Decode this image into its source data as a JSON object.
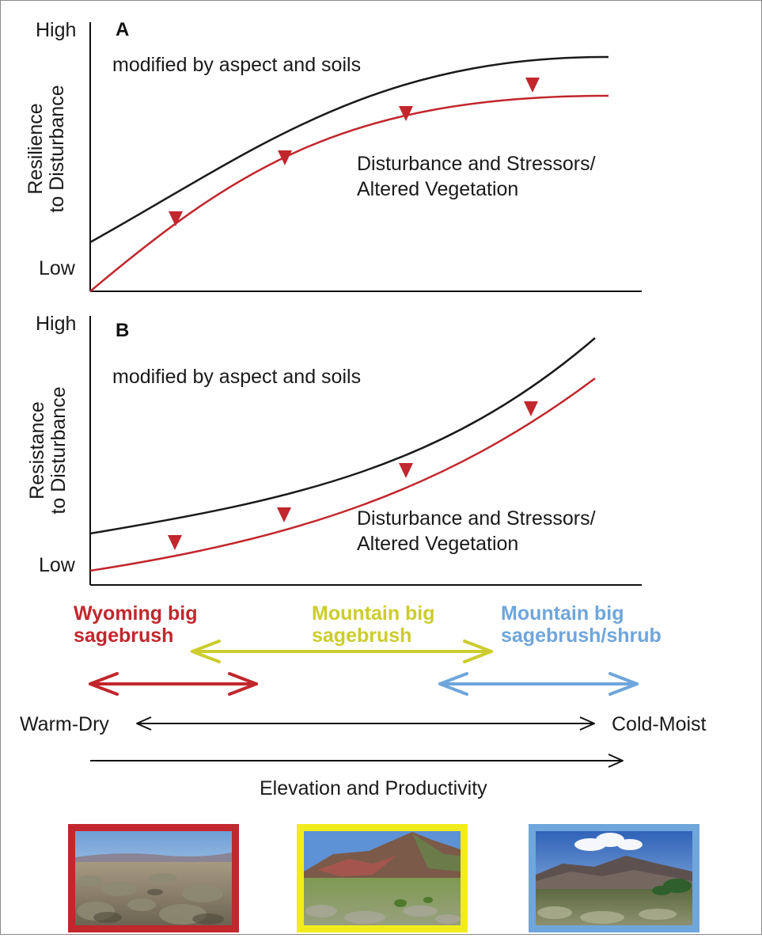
{
  "panel_a": {
    "letter": "A",
    "y_high": "High",
    "y_low": "Low",
    "y_label_line1": "Resilience",
    "y_label_line2": "to Disturbance",
    "modifier_text": "modified by aspect and soils",
    "stress_line1": "Disturbance and Stressors/",
    "stress_line2": "Altered Vegetation"
  },
  "panel_b": {
    "letter": "B",
    "y_high": "High",
    "y_low": "Low",
    "y_label_line1": "Resistance",
    "y_label_line2": "to Disturbance",
    "modifier_text": "modified by aspect and soils",
    "stress_line1": "Disturbance and Stressors/",
    "stress_line2": "Altered Vegetation"
  },
  "sagebrush": {
    "wyoming": {
      "line1": "Wyoming big",
      "line2": "sagebrush",
      "color": "#c1272d"
    },
    "mountain": {
      "line1": "Mountain big",
      "line2": "sagebrush",
      "color": "#cccc2e"
    },
    "mountain_shrub": {
      "line1": "Mountain big",
      "line2": "sagebrush/shrub",
      "color": "#6fa6db"
    }
  },
  "gradient": {
    "warm_dry": "Warm-Dry",
    "cold_moist": "Cold-Moist",
    "elevation_label": "Elevation and Productivity"
  },
  "photos": [
    {
      "frame_color": "#c1272d",
      "scene": "wyoming-sagebrush-flat"
    },
    {
      "frame_color": "#f2ec1c",
      "scene": "mountain-sagebrush-hills"
    },
    {
      "frame_color": "#6fa6db",
      "scene": "mountain-shrub-slopes"
    }
  ],
  "colors": {
    "reference_curve": "#1a1a1a",
    "altered_curve": "#c1272d",
    "down_arrow": "#c1272d"
  }
}
